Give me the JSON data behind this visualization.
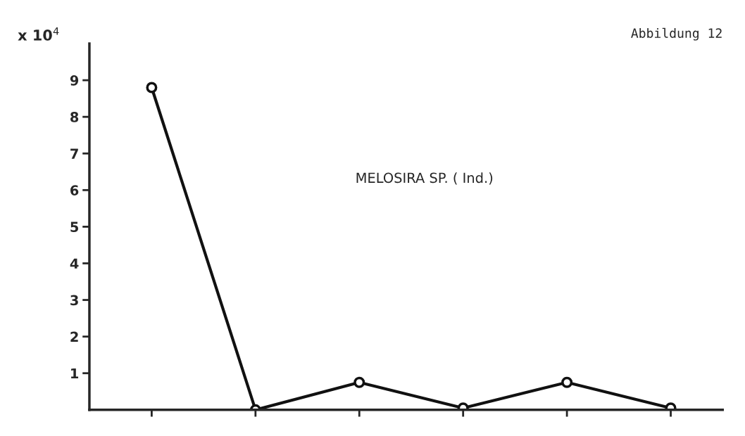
{
  "chart_data": {
    "type": "line",
    "title": "Abbildung 12",
    "ylabel": "x 10$^{4}$",
    "annotations": [
      "MELOSIRA SP. ( Ind.)"
    ],
    "categories": [
      null,
      null,
      null,
      null,
      null,
      null
    ],
    "series": [
      {
        "color": "#111111",
        "values": [
          8.8,
          0,
          0.75,
          0.05,
          0.75,
          0.05
        ]
      }
    ],
    "ylim": [
      0,
      10
    ],
    "yticks": [
      1,
      2,
      3,
      4,
      5,
      6,
      7,
      8,
      9
    ],
    "marker": "circle",
    "line_style": "solid",
    "grid": false,
    "legend": false
  }
}
